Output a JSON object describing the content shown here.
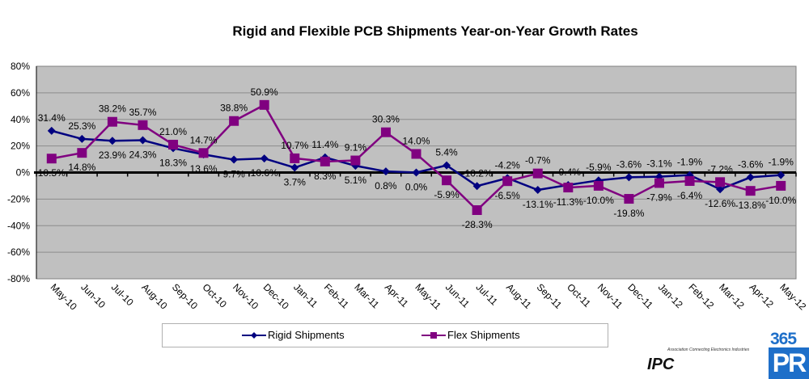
{
  "chart_data": {
    "type": "line",
    "title": "Rigid and Flexible PCB Shipments Year-on-Year Growth Rates",
    "xlabel": "",
    "ylabel": "",
    "ylim": [
      -80,
      80
    ],
    "yticks": [
      "80%",
      "60%",
      "40%",
      "20%",
      "0%",
      "-20%",
      "-40%",
      "-60%",
      "-80%"
    ],
    "ytick_values": [
      80,
      60,
      40,
      20,
      0,
      -20,
      -40,
      -60,
      -80
    ],
    "grid": true,
    "legend_position": "bottom",
    "categories": [
      "May-10",
      "Jun-10",
      "Jul-10",
      "Aug-10",
      "Sep-10",
      "Oct-10",
      "Nov-10",
      "Dec-10",
      "Jan-11",
      "Feb-11",
      "Mar-11",
      "Apr-11",
      "May-11",
      "Jun-11",
      "Jul-11",
      "Aug-11",
      "Sep-11",
      "Oct-11",
      "Nov-11",
      "Dec-11",
      "Jan-12",
      "Feb-12",
      "Mar-12",
      "Apr-12",
      "May-12"
    ],
    "series": [
      {
        "name": "Rigid Shipments",
        "color": "#000080",
        "marker": "diamond",
        "values": [
          31.4,
          25.3,
          23.9,
          24.3,
          18.3,
          13.6,
          9.7,
          10.6,
          3.7,
          11.4,
          5.1,
          0.8,
          0.0,
          5.4,
          -10.2,
          -4.2,
          -13.1,
          -9.4,
          -5.9,
          -3.6,
          -3.1,
          -1.9,
          -12.6,
          -3.6,
          -1.9
        ],
        "labels": [
          "31.4%",
          "25.3%",
          "23.9%",
          "24.3%",
          "18.3%",
          "13.6%",
          "9.7%",
          "10.6%",
          "3.7%",
          "11.4%",
          "5.1%",
          "0.8%",
          "0.0%",
          "5.4%",
          "-10.2%",
          "-4.2%",
          "-13.1%",
          "-9.4%",
          "-5.9%",
          "-3.6%",
          "-3.1%",
          "-1.9%",
          "-12.6%",
          "-3.6%",
          "-1.9%"
        ]
      },
      {
        "name": "Flex Shipments",
        "color": "#800080",
        "marker": "square",
        "values": [
          10.5,
          14.8,
          38.2,
          35.7,
          21.0,
          14.7,
          38.8,
          50.9,
          10.7,
          8.3,
          9.1,
          30.3,
          14.0,
          -5.9,
          -28.3,
          -6.5,
          -0.7,
          -11.3,
          -10.0,
          -19.8,
          -7.9,
          -6.4,
          -7.2,
          -13.8,
          -10.0
        ],
        "labels": [
          "10.5%",
          "14.8%",
          "38.2%",
          "35.7%",
          "21.0%",
          "14.7%",
          "38.8%",
          "50.9%",
          "10.7%",
          "8.3%",
          "9.1%",
          "30.3%",
          "14.0%",
          "-5.9%",
          "-28.3%",
          "-6.5%",
          "-0.7%",
          "-11.3%",
          "-10.0%",
          "-19.8%",
          "-7.9%",
          "-6.4%",
          "-7.2%",
          "-13.8%",
          "-10.0%"
        ]
      }
    ],
    "plot_background": "#c0c0c0"
  },
  "legend": {
    "rigid_label": "Rigid Shipments",
    "flex_label": "Flex Shipments"
  },
  "logos": {
    "ipc_tagline": "Association Connecting Electronics Industries",
    "ipc_name": "IPC",
    "pr_number": "365",
    "pr_letters": "PR"
  }
}
